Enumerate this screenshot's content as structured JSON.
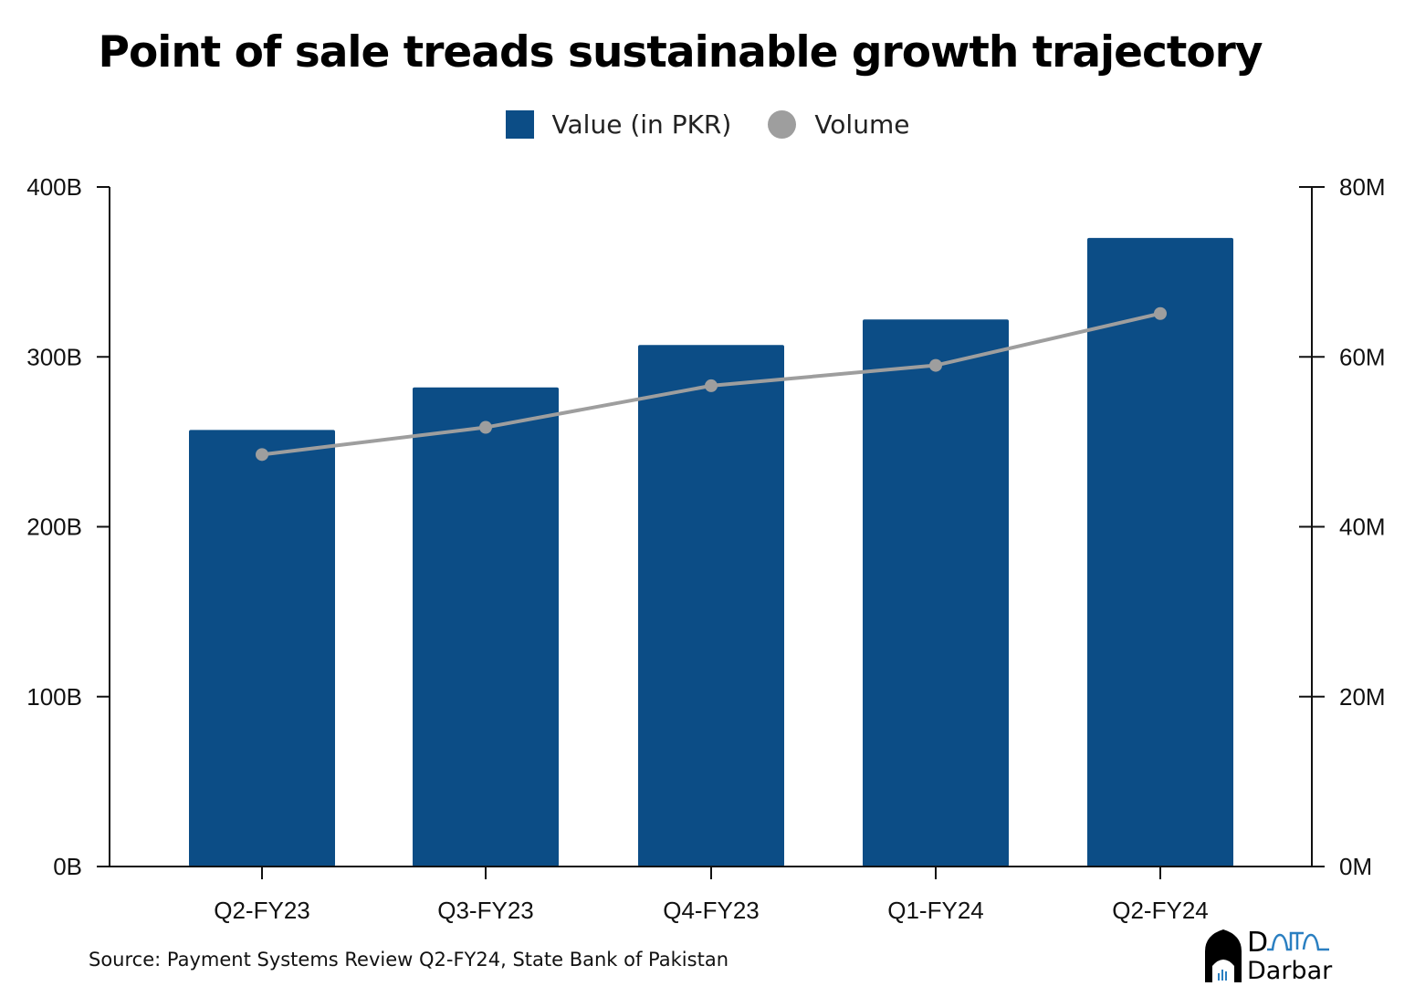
{
  "chart_data": {
    "type": "bar",
    "title": "Point of sale treads sustainable growth trajectory",
    "categories": [
      "Q2-FY23",
      "Q3-FY23",
      "Q4-FY23",
      "Q1-FY24",
      "Q2-FY24"
    ],
    "series": [
      {
        "name": "Value (in PKR)",
        "type": "bar",
        "axis": "left",
        "color": "#0c4d86",
        "values": [
          257,
          282,
          307,
          322,
          370
        ]
      },
      {
        "name": "Volume",
        "type": "line",
        "axis": "right",
        "color": "#9e9e9e",
        "values": [
          48.5,
          51.7,
          56.6,
          59.0,
          65.1
        ]
      }
    ],
    "left_axis": {
      "range": [
        0,
        400
      ],
      "ticks": [
        "0B",
        "100B",
        "200B",
        "300B",
        "400B"
      ]
    },
    "right_axis": {
      "range": [
        0,
        80
      ],
      "ticks": [
        "0M",
        "20M",
        "40M",
        "60M",
        "80M"
      ]
    },
    "legend": "top-center",
    "grid": false
  },
  "source": "Source: Payment Systems Review Q2-FY24, State Bank of Pakistan",
  "logo": {
    "line1": "DaTa",
    "line2": "Darbar"
  }
}
